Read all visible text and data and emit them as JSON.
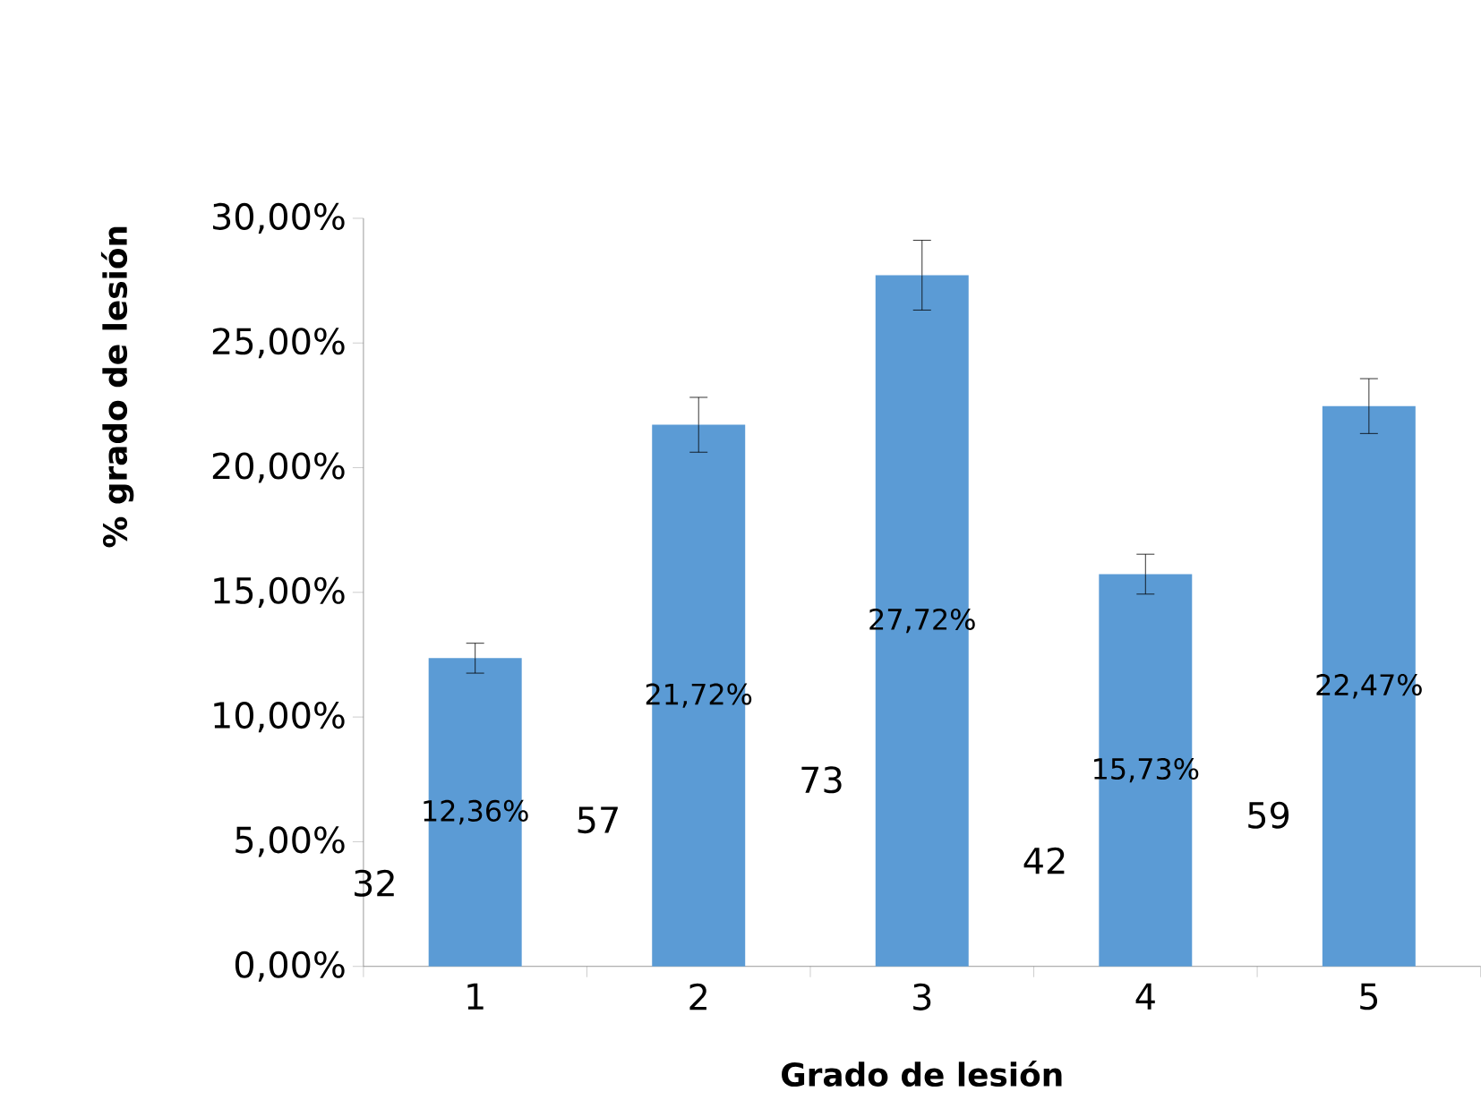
{
  "chart_data": {
    "type": "bar",
    "xlabel": "Grado de lesión",
    "ylabel": "% grado de lesión",
    "categories": [
      "1",
      "2",
      "3",
      "4",
      "5"
    ],
    "values": [
      12.36,
      21.72,
      27.72,
      15.73,
      22.47
    ],
    "errors": [
      0.6,
      1.1,
      1.4,
      0.8,
      1.1
    ],
    "value_labels": [
      "12,36%",
      "21,72%",
      "27,72%",
      "15,73%",
      "22,47%"
    ],
    "color": "#5b9bd5",
    "ylim": [
      0,
      30
    ],
    "yticks": [
      {
        "value": 0,
        "label": "0,00%"
      },
      {
        "value": 5,
        "label": "5,00%"
      },
      {
        "value": 10,
        "label": "10,00%"
      },
      {
        "value": 15,
        "label": "15,00%"
      },
      {
        "value": 20,
        "label": "20,00%"
      },
      {
        "value": 25,
        "label": "25,00%"
      },
      {
        "value": 30,
        "label": "30,00%"
      }
    ],
    "annotations": [
      "32",
      "57",
      "73",
      "42",
      "59"
    ],
    "grid": false
  }
}
